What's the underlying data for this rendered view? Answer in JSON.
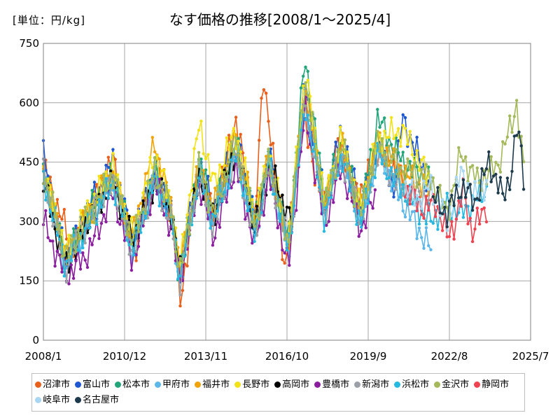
{
  "unit_label": "[単位：円/kg]",
  "title": "なす価格の推移[2008/1～2025/4]",
  "chart_data": {
    "type": "line",
    "title": "なす価格の推移[2008/1～2025/4]",
    "unit": "[単位：円/kg]",
    "x_range": [
      "2008-01",
      "2025-07"
    ],
    "x_tick_labels": [
      "2008/1",
      "2010/12",
      "2013/11",
      "2016/10",
      "2019/9",
      "2022/8",
      "2025/7"
    ],
    "x_tick_dates": [
      "2008-01",
      "2010-12",
      "2013-11",
      "2016-10",
      "2019-09",
      "2022-08",
      "2025-07"
    ],
    "ylim": [
      0,
      750
    ],
    "y_ticks": [
      0,
      150,
      300,
      450,
      600,
      750
    ],
    "grid": true,
    "legend_position": "bottom",
    "series": [
      {
        "name": "沼津市",
        "color": "#E8601C",
        "end": "2020-12",
        "anchors": [
          [
            2008.0,
            440
          ],
          [
            2009.0,
            240
          ],
          [
            2009.5,
            300
          ],
          [
            2010.5,
            460
          ],
          [
            2011.2,
            200
          ],
          [
            2012.0,
            420
          ],
          [
            2012.6,
            330
          ],
          [
            2012.9,
            90
          ],
          [
            2013.6,
            440
          ],
          [
            2014.1,
            310
          ],
          [
            2014.9,
            560
          ],
          [
            2015.6,
            290
          ],
          [
            2015.9,
            680
          ],
          [
            2016.7,
            170
          ],
          [
            2017.3,
            560
          ],
          [
            2018.1,
            330
          ],
          [
            2018.6,
            500
          ],
          [
            2019.3,
            360
          ],
          [
            2020.0,
            480
          ],
          [
            2020.9,
            410
          ]
        ]
      },
      {
        "name": "富山市",
        "color": "#1F57D0",
        "end": "2021-12",
        "anchors": [
          [
            2008.0,
            465
          ],
          [
            2008.8,
            200
          ],
          [
            2009.6,
            330
          ],
          [
            2010.5,
            450
          ],
          [
            2011.2,
            250
          ],
          [
            2012.0,
            440
          ],
          [
            2012.6,
            330
          ],
          [
            2012.9,
            170
          ],
          [
            2013.6,
            450
          ],
          [
            2014.1,
            330
          ],
          [
            2014.9,
            520
          ],
          [
            2015.6,
            300
          ],
          [
            2016.1,
            470
          ],
          [
            2016.8,
            240
          ],
          [
            2017.4,
            650
          ],
          [
            2018.1,
            350
          ],
          [
            2018.7,
            530
          ],
          [
            2019.4,
            330
          ],
          [
            2020.0,
            500
          ],
          [
            2020.6,
            380
          ],
          [
            2020.9,
            560
          ],
          [
            2021.9,
            390
          ]
        ]
      },
      {
        "name": "松本市",
        "color": "#22A579",
        "end": "2021-12",
        "anchors": [
          [
            2008.0,
            440
          ],
          [
            2008.8,
            200
          ],
          [
            2009.6,
            320
          ],
          [
            2010.5,
            430
          ],
          [
            2011.2,
            240
          ],
          [
            2012.0,
            430
          ],
          [
            2012.6,
            330
          ],
          [
            2012.9,
            150
          ],
          [
            2013.6,
            460
          ],
          [
            2014.1,
            320
          ],
          [
            2014.9,
            500
          ],
          [
            2015.6,
            300
          ],
          [
            2016.1,
            460
          ],
          [
            2016.8,
            250
          ],
          [
            2017.4,
            715
          ],
          [
            2018.1,
            350
          ],
          [
            2018.7,
            500
          ],
          [
            2019.4,
            320
          ],
          [
            2020.0,
            560
          ],
          [
            2020.9,
            450
          ],
          [
            2021.9,
            400
          ]
        ]
      },
      {
        "name": "甲府市",
        "color": "#5DB7E8",
        "end": "2021-12",
        "anchors": [
          [
            2008.0,
            420
          ],
          [
            2008.8,
            180
          ],
          [
            2009.6,
            300
          ],
          [
            2010.5,
            420
          ],
          [
            2011.2,
            220
          ],
          [
            2012.0,
            420
          ],
          [
            2012.6,
            320
          ],
          [
            2012.9,
            140
          ],
          [
            2013.6,
            430
          ],
          [
            2014.1,
            300
          ],
          [
            2014.9,
            480
          ],
          [
            2015.6,
            270
          ],
          [
            2016.1,
            440
          ],
          [
            2016.8,
            220
          ],
          [
            2017.4,
            620
          ],
          [
            2018.1,
            320
          ],
          [
            2018.7,
            480
          ],
          [
            2019.4,
            300
          ],
          [
            2020.0,
            480
          ],
          [
            2020.9,
            350
          ],
          [
            2021.9,
            230
          ]
        ]
      },
      {
        "name": "福井市",
        "color": "#F0A30A",
        "end": "2021-12",
        "anchors": [
          [
            2008.0,
            430
          ],
          [
            2008.8,
            210
          ],
          [
            2009.6,
            320
          ],
          [
            2010.5,
            420
          ],
          [
            2011.2,
            260
          ],
          [
            2012.0,
            500
          ],
          [
            2012.6,
            330
          ],
          [
            2012.9,
            180
          ],
          [
            2013.6,
            440
          ],
          [
            2014.1,
            330
          ],
          [
            2014.9,
            520
          ],
          [
            2015.6,
            300
          ],
          [
            2016.1,
            460
          ],
          [
            2016.8,
            240
          ],
          [
            2017.4,
            640
          ],
          [
            2018.1,
            340
          ],
          [
            2018.7,
            500
          ],
          [
            2019.4,
            320
          ],
          [
            2020.0,
            500
          ],
          [
            2020.9,
            420
          ],
          [
            2021.9,
            380
          ]
        ]
      },
      {
        "name": "長野市",
        "color": "#F2E21C",
        "end": "2021-12",
        "anchors": [
          [
            2008.0,
            430
          ],
          [
            2008.8,
            220
          ],
          [
            2009.6,
            330
          ],
          [
            2010.5,
            440
          ],
          [
            2011.2,
            260
          ],
          [
            2012.0,
            470
          ],
          [
            2012.6,
            340
          ],
          [
            2012.9,
            180
          ],
          [
            2013.6,
            550
          ],
          [
            2014.1,
            390
          ],
          [
            2014.9,
            530
          ],
          [
            2015.6,
            310
          ],
          [
            2016.1,
            470
          ],
          [
            2016.8,
            250
          ],
          [
            2017.4,
            680
          ],
          [
            2018.1,
            350
          ],
          [
            2018.7,
            510
          ],
          [
            2019.4,
            330
          ],
          [
            2020.0,
            510
          ],
          [
            2020.9,
            530
          ],
          [
            2021.9,
            400
          ]
        ]
      },
      {
        "name": "高岡市",
        "color": "#000000",
        "end": "2016-12",
        "anchors": [
          [
            2008.0,
            400
          ],
          [
            2008.8,
            180
          ],
          [
            2009.6,
            300
          ],
          [
            2010.5,
            400
          ],
          [
            2011.2,
            250
          ],
          [
            2012.0,
            400
          ],
          [
            2012.6,
            320
          ],
          [
            2012.9,
            170
          ],
          [
            2013.6,
            420
          ],
          [
            2014.1,
            310
          ],
          [
            2014.9,
            480
          ],
          [
            2015.6,
            280
          ],
          [
            2016.1,
            440
          ],
          [
            2016.9,
            300
          ]
        ]
      },
      {
        "name": "豊橋市",
        "color": "#8A1E9E",
        "end": "2019-12",
        "anchors": [
          [
            2008.0,
            300
          ],
          [
            2008.8,
            160
          ],
          [
            2009.6,
            220
          ],
          [
            2010.5,
            370
          ],
          [
            2011.2,
            200
          ],
          [
            2012.0,
            400
          ],
          [
            2012.6,
            280
          ],
          [
            2012.9,
            150
          ],
          [
            2013.6,
            400
          ],
          [
            2014.1,
            260
          ],
          [
            2014.9,
            440
          ],
          [
            2015.6,
            240
          ],
          [
            2016.1,
            420
          ],
          [
            2016.8,
            180
          ],
          [
            2017.4,
            580
          ],
          [
            2018.1,
            290
          ],
          [
            2018.7,
            440
          ],
          [
            2019.4,
            280
          ],
          [
            2019.9,
            360
          ]
        ]
      },
      {
        "name": "新潟市",
        "color": "#9AA0A6",
        "end": "2021-12",
        "anchors": [
          [
            2008.0,
            420
          ],
          [
            2008.8,
            180
          ],
          [
            2009.6,
            300
          ],
          [
            2010.5,
            400
          ],
          [
            2011.2,
            220
          ],
          [
            2012.0,
            400
          ],
          [
            2012.6,
            300
          ],
          [
            2012.9,
            150
          ],
          [
            2013.6,
            410
          ],
          [
            2014.1,
            290
          ],
          [
            2014.9,
            470
          ],
          [
            2015.6,
            260
          ],
          [
            2016.1,
            440
          ],
          [
            2016.8,
            230
          ],
          [
            2017.4,
            600
          ],
          [
            2018.1,
            320
          ],
          [
            2018.7,
            470
          ],
          [
            2019.4,
            300
          ],
          [
            2020.0,
            470
          ],
          [
            2020.9,
            380
          ],
          [
            2021.9,
            360
          ]
        ]
      },
      {
        "name": "浜松市",
        "color": "#25B8E0",
        "end": "2023-12",
        "anchors": [
          [
            2008.0,
            410
          ],
          [
            2008.8,
            190
          ],
          [
            2009.6,
            290
          ],
          [
            2010.5,
            400
          ],
          [
            2011.2,
            230
          ],
          [
            2012.0,
            400
          ],
          [
            2012.6,
            310
          ],
          [
            2012.9,
            160
          ],
          [
            2013.6,
            420
          ],
          [
            2014.1,
            300
          ],
          [
            2014.9,
            470
          ],
          [
            2015.6,
            270
          ],
          [
            2016.1,
            450
          ],
          [
            2016.8,
            230
          ],
          [
            2017.4,
            600
          ],
          [
            2018.1,
            310
          ],
          [
            2018.7,
            470
          ],
          [
            2019.4,
            290
          ],
          [
            2020.0,
            470
          ],
          [
            2020.9,
            380
          ],
          [
            2021.9,
            300
          ],
          [
            2022.5,
            340
          ],
          [
            2023.0,
            320
          ],
          [
            2023.9,
            380
          ]
        ]
      },
      {
        "name": "金沢市",
        "color": "#A3B95A",
        "end": "2025-04",
        "anchors": [
          [
            2008.0,
            430
          ],
          [
            2008.8,
            210
          ],
          [
            2009.6,
            310
          ],
          [
            2010.5,
            420
          ],
          [
            2011.2,
            250
          ],
          [
            2012.0,
            430
          ],
          [
            2012.6,
            330
          ],
          [
            2012.9,
            170
          ],
          [
            2013.6,
            440
          ],
          [
            2014.1,
            320
          ],
          [
            2014.9,
            500
          ],
          [
            2015.6,
            290
          ],
          [
            2016.1,
            460
          ],
          [
            2016.8,
            240
          ],
          [
            2017.4,
            660
          ],
          [
            2018.1,
            340
          ],
          [
            2018.7,
            500
          ],
          [
            2019.4,
            320
          ],
          [
            2020.0,
            500
          ],
          [
            2020.9,
            430
          ],
          [
            2021.9,
            410
          ],
          [
            2022.5,
            320
          ],
          [
            2023.0,
            470
          ],
          [
            2023.6,
            400
          ],
          [
            2024.3,
            440
          ],
          [
            2024.8,
            540
          ],
          [
            2025.0,
            600
          ],
          [
            2025.3,
            400
          ]
        ]
      },
      {
        "name": "静岡市",
        "color": "#EF4351",
        "end": "2023-12",
        "anchors": [
          [
            2021.0,
            380
          ],
          [
            2021.7,
            330
          ],
          [
            2022.1,
            350
          ],
          [
            2022.5,
            260
          ],
          [
            2022.8,
            300
          ],
          [
            2023.1,
            380
          ],
          [
            2023.4,
            270
          ],
          [
            2023.9,
            340
          ]
        ]
      },
      {
        "name": "岐阜市",
        "color": "#A9D6F2",
        "end": "2023-12",
        "anchors": [
          [
            2021.0,
            380
          ],
          [
            2021.5,
            360
          ],
          [
            2021.9,
            390
          ],
          [
            2022.5,
            300
          ],
          [
            2023.0,
            420
          ],
          [
            2023.5,
            360
          ],
          [
            2023.9,
            400
          ]
        ]
      },
      {
        "name": "名古屋市",
        "color": "#1D3A4C",
        "end": "2025-04",
        "anchors": [
          [
            2022.0,
            360
          ],
          [
            2022.5,
            320
          ],
          [
            2023.0,
            390
          ],
          [
            2023.5,
            350
          ],
          [
            2024.0,
            450
          ],
          [
            2024.3,
            400
          ],
          [
            2024.5,
            360
          ],
          [
            2024.8,
            420
          ],
          [
            2025.0,
            530
          ],
          [
            2025.2,
            470
          ],
          [
            2025.3,
            370
          ]
        ]
      }
    ]
  }
}
